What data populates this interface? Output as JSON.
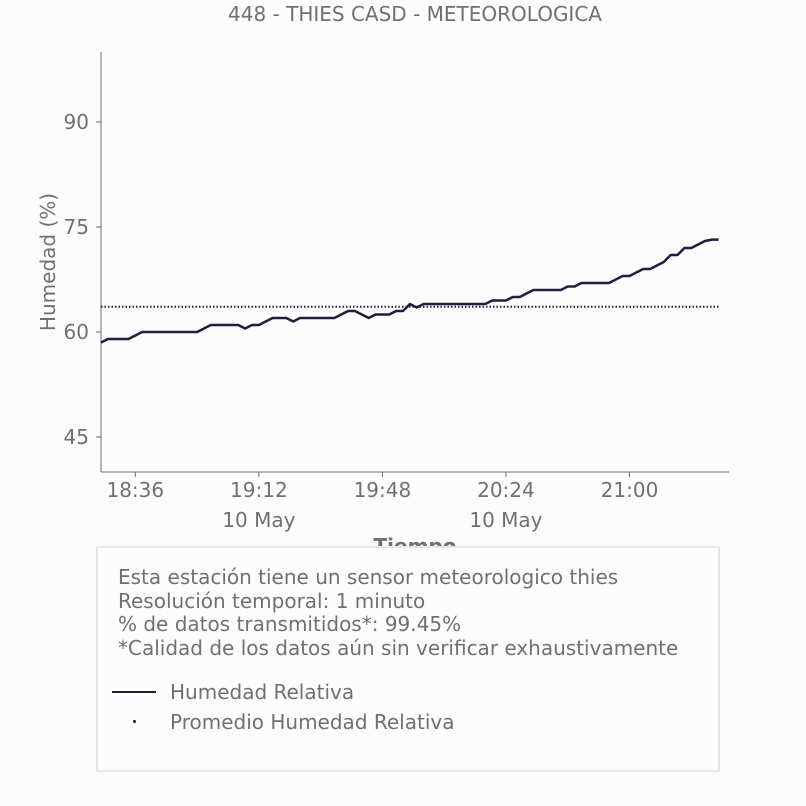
{
  "chart_data": {
    "type": "line",
    "title": "448 - THIES CASD - METEOROLOGICA",
    "xlabel": "Tiempo",
    "ylabel": "Humedad (%)",
    "ylim": [
      40,
      100
    ],
    "yticks": [
      45,
      60,
      75,
      90
    ],
    "x_tick_labels": [
      "18:36",
      "19:12",
      "19:48",
      "20:24",
      "21:00"
    ],
    "x_date_labels": [
      "10 May",
      "10 May"
    ],
    "grid": false,
    "series": [
      {
        "name": "Humedad Relativa",
        "style": "solid",
        "color": "#1f1f3d",
        "x": [
          "18:26",
          "18:28",
          "18:30",
          "18:32",
          "18:34",
          "18:36",
          "18:38",
          "18:40",
          "18:42",
          "18:44",
          "18:46",
          "18:48",
          "18:50",
          "18:52",
          "18:54",
          "18:56",
          "18:58",
          "19:00",
          "19:02",
          "19:04",
          "19:06",
          "19:08",
          "19:10",
          "19:12",
          "19:14",
          "19:16",
          "19:18",
          "19:20",
          "19:22",
          "19:24",
          "19:26",
          "19:28",
          "19:30",
          "19:32",
          "19:34",
          "19:36",
          "19:38",
          "19:40",
          "19:42",
          "19:44",
          "19:46",
          "19:48",
          "19:50",
          "19:52",
          "19:54",
          "19:56",
          "19:58",
          "20:00",
          "20:02",
          "20:04",
          "20:06",
          "20:08",
          "20:10",
          "20:12",
          "20:14",
          "20:16",
          "20:18",
          "20:20",
          "20:22",
          "20:24",
          "20:26",
          "20:28",
          "20:30",
          "20:32",
          "20:34",
          "20:36",
          "20:38",
          "20:40",
          "20:42",
          "20:44",
          "20:46",
          "20:48",
          "20:50",
          "20:52",
          "20:54",
          "20:56",
          "20:58",
          "21:00",
          "21:02",
          "21:04",
          "21:06",
          "21:08",
          "21:10",
          "21:12",
          "21:14",
          "21:16",
          "21:18",
          "21:20",
          "21:22",
          "21:24",
          "21:26"
        ],
        "values": [
          58.5,
          59,
          59,
          59,
          59,
          59.5,
          60,
          60,
          60,
          60,
          60,
          60,
          60,
          60,
          60,
          60.5,
          61,
          61,
          61,
          61,
          61,
          60.5,
          61,
          61,
          61.5,
          62,
          62,
          62,
          61.5,
          62,
          62,
          62,
          62,
          62,
          62,
          62.5,
          63,
          63,
          62.5,
          62,
          62.5,
          62.5,
          62.5,
          63,
          63,
          64,
          63.5,
          64,
          64,
          64,
          64,
          64,
          64,
          64,
          64,
          64,
          64,
          64.5,
          64.5,
          64.5,
          65,
          65,
          65.5,
          66,
          66,
          66,
          66,
          66,
          66.5,
          66.5,
          67,
          67,
          67,
          67,
          67,
          67.5,
          68,
          68,
          68.5,
          69,
          69,
          69.5,
          70,
          71,
          71,
          72,
          72,
          72.5,
          73,
          73.2,
          73.2
        ]
      },
      {
        "name": "Promedio Humedad Relativa",
        "style": "dotted",
        "color": "#1f1f3d",
        "x": [
          "18:26",
          "21:26"
        ],
        "values": [
          63.6,
          63.6
        ]
      }
    ],
    "legend": [
      "Humedad Relativa",
      "Promedio Humedad Relativa"
    ],
    "legend_placement": "bottom"
  },
  "info": {
    "lines": [
      "Esta estación tiene un sensor meteorologico thies",
      "Resolución temporal: 1 minuto",
      "% de datos transmitidos*: 99.45%",
      "*Calidad de los datos aún sin verificar exhaustivamente"
    ]
  },
  "colors": {
    "text": "#707070",
    "line": "#1f1f3d",
    "axis": "#707070",
    "background": "#fcfcfc",
    "box_border": "#e6e6e6"
  }
}
